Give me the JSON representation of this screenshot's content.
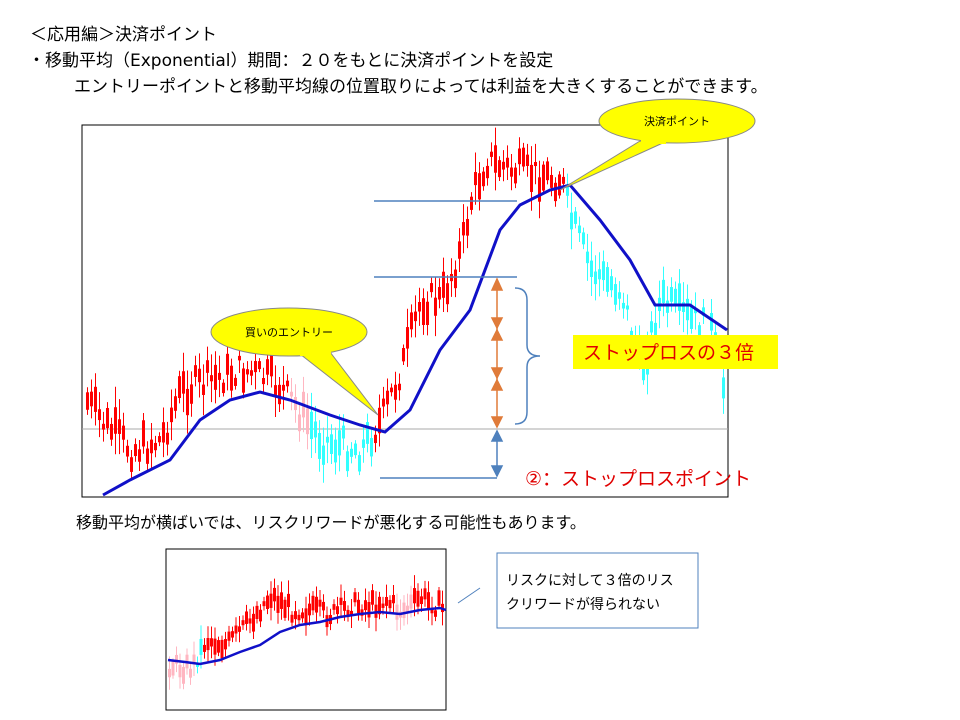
{
  "header": {
    "title": "＜応用編＞決済ポイント",
    "bullet": "・移動平均（Exponential）期間：２０をもとに決済ポイントを設定",
    "description": "エントリーポイントと移動平均線の位置取りによっては利益を大きくすることができます。"
  },
  "main_chart": {
    "exit_callout": "決済ポイント",
    "entry_callout": "買いのエントリー",
    "target_label": "ストップロスの３倍",
    "stop_label": "②：ストップロスポイント"
  },
  "note": "移動平均が横ばいでは、リスクリワードが悪化する可能性もあります。",
  "sub_chart": {
    "comment_lines": [
      "リスクに対して３倍のリス",
      "クリワードが得られない"
    ]
  }
}
